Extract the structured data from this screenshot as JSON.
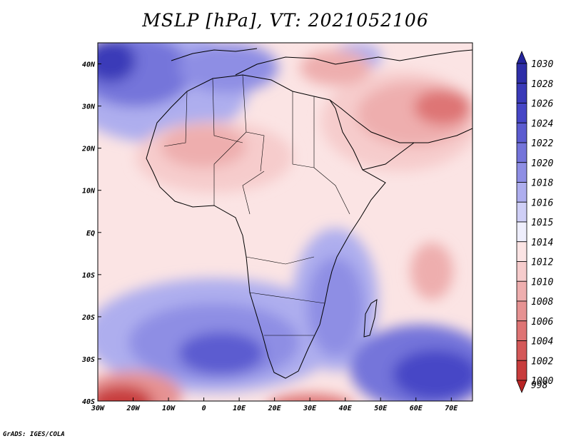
{
  "title": "MSLP [hPa], VT: 2021052106",
  "credit": "GrADS: IGES/COLA",
  "map": {
    "lon_range": [
      -30,
      76
    ],
    "lat_range": [
      -40,
      45
    ],
    "x_ticks": [
      {
        "lon": -30,
        "label": "30W"
      },
      {
        "lon": -20,
        "label": "20W"
      },
      {
        "lon": -10,
        "label": "10W"
      },
      {
        "lon": 0,
        "label": "0"
      },
      {
        "lon": 10,
        "label": "10E"
      },
      {
        "lon": 20,
        "label": "20E"
      },
      {
        "lon": 30,
        "label": "30E"
      },
      {
        "lon": 40,
        "label": "40E"
      },
      {
        "lon": 50,
        "label": "50E"
      },
      {
        "lon": 60,
        "label": "60E"
      },
      {
        "lon": 70,
        "label": "70E"
      }
    ],
    "y_ticks": [
      {
        "lat": 40,
        "label": "40N"
      },
      {
        "lat": 30,
        "label": "30N"
      },
      {
        "lat": 20,
        "label": "20N"
      },
      {
        "lat": 10,
        "label": "10N"
      },
      {
        "lat": 0,
        "label": "EQ"
      },
      {
        "lat": -10,
        "label": "10S"
      },
      {
        "lat": -20,
        "label": "20S"
      },
      {
        "lat": -30,
        "label": "30S"
      },
      {
        "lat": -40,
        "label": "40S"
      }
    ]
  },
  "colorbar": {
    "levels": [
      {
        "label": "1030",
        "color": "#24249c"
      },
      {
        "label": "1028",
        "color": "#2e2ea8"
      },
      {
        "label": "1026",
        "color": "#3a3ab8"
      },
      {
        "label": "1024",
        "color": "#4646c6"
      },
      {
        "label": "1022",
        "color": "#5c5cd0"
      },
      {
        "label": "1020",
        "color": "#7474da"
      },
      {
        "label": "1018",
        "color": "#8e8ee4"
      },
      {
        "label": "1016",
        "color": "#aeaeee"
      },
      {
        "label": "1015",
        "color": "#cfcff6"
      },
      {
        "label": "1014",
        "color": "#eeeefc"
      },
      {
        "label": "1012",
        "color": "#fbe4e4"
      },
      {
        "label": "1010",
        "color": "#f6cccc"
      },
      {
        "label": "1008",
        "color": "#eeaeae"
      },
      {
        "label": "1006",
        "color": "#e69292"
      },
      {
        "label": "1004",
        "color": "#de7474"
      },
      {
        "label": "1002",
        "color": "#d45858"
      },
      {
        "label": "1000",
        "color": "#c83c3c"
      },
      {
        "label": "998",
        "color": "#b82424"
      }
    ]
  }
}
